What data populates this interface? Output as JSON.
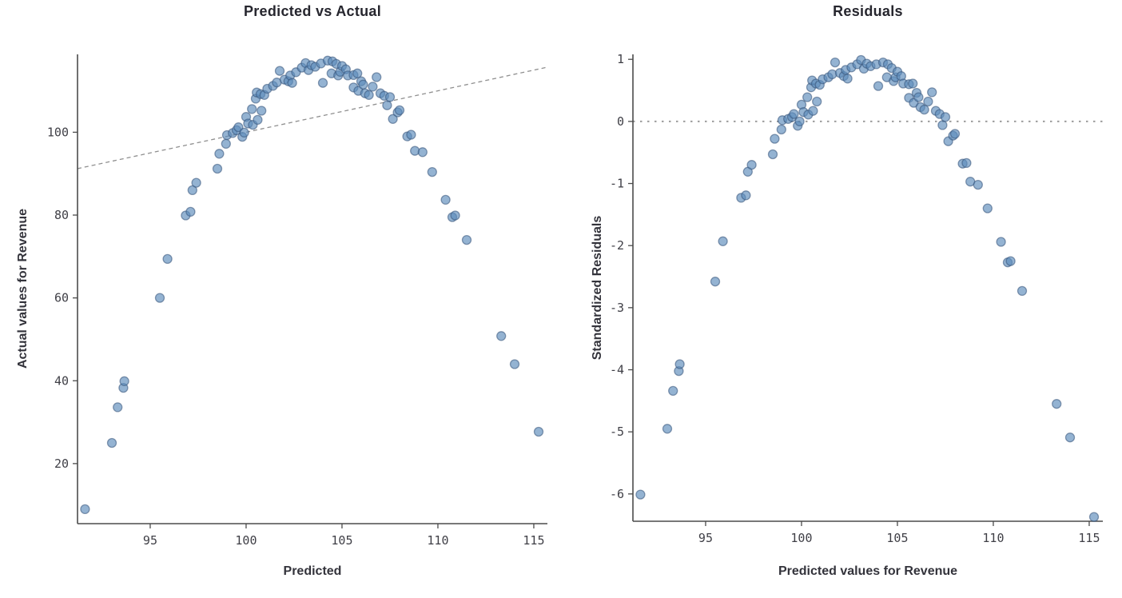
{
  "page": {
    "background": "#ffffff"
  },
  "style": {
    "point_fill": "rgba(93,140,187,0.66)",
    "point_stroke": "rgba(52,82,120,0.55)",
    "point_radius": 5.5,
    "point_stroke_width": 1.3,
    "axis_color": "#4b4b4b",
    "tick_label_color": "#3f3f46",
    "title_color": "#26262e",
    "label_color": "#33333b",
    "ref_line_color": "#8f8f8f",
    "zero_line_color": "#9c9c9c"
  },
  "chart_data": [
    {
      "id": "predicted_vs_actual",
      "type": "scatter",
      "title": "Predicted vs Actual",
      "xlabel": "Predicted",
      "ylabel": "Actual values for Revenue",
      "xlim": [
        91.21,
        115.71
      ],
      "ylim": [
        5.5,
        118.8
      ],
      "xticks": [
        95,
        100,
        105,
        110,
        115
      ],
      "yticks": [
        20,
        40,
        60,
        80,
        100
      ],
      "grid": false,
      "legend": false,
      "reference_line": {
        "type": "identity",
        "style": "dashed"
      },
      "points": [
        [
          91.6,
          9
        ],
        [
          93,
          25
        ],
        [
          93.3,
          33.6
        ],
        [
          93.6,
          38.3
        ],
        [
          93.65,
          39.9
        ],
        [
          95.5,
          60
        ],
        [
          95.9,
          69.4
        ],
        [
          96.85,
          79.9
        ],
        [
          97.1,
          80.8
        ],
        [
          97.2,
          86
        ],
        [
          97.4,
          87.8
        ],
        [
          98.5,
          91.2
        ],
        [
          98.6,
          94.8
        ],
        [
          98.95,
          97.2
        ],
        [
          99,
          99.3
        ],
        [
          99.3,
          99.8
        ],
        [
          99.5,
          100.5
        ],
        [
          99.6,
          101.2
        ],
        [
          99.8,
          98.9
        ],
        [
          99.9,
          99.9
        ],
        [
          100,
          103.7
        ],
        [
          100.1,
          102.1
        ],
        [
          100.3,
          105.6
        ],
        [
          100.35,
          101.8
        ],
        [
          100.5,
          108.1
        ],
        [
          100.55,
          109.6
        ],
        [
          100.6,
          103
        ],
        [
          100.75,
          109.2
        ],
        [
          100.8,
          105.2
        ],
        [
          100.95,
          109
        ],
        [
          101.1,
          110.5
        ],
        [
          101.4,
          111.2
        ],
        [
          101.6,
          112
        ],
        [
          101.75,
          114.8
        ],
        [
          102,
          112.7
        ],
        [
          102.2,
          112.3
        ],
        [
          102.3,
          113.7
        ],
        [
          102.4,
          111.9
        ],
        [
          102.6,
          114.5
        ],
        [
          102.9,
          115.6
        ],
        [
          103.1,
          116.7
        ],
        [
          103.25,
          115
        ],
        [
          103.4,
          116.2
        ],
        [
          103.6,
          115.8
        ],
        [
          103.9,
          116.6
        ],
        [
          104,
          111.9
        ],
        [
          104.25,
          117.3
        ],
        [
          104.45,
          114.2
        ],
        [
          104.5,
          117.1
        ],
        [
          104.7,
          116.5
        ],
        [
          104.8,
          113.7
        ],
        [
          104.9,
          114.6
        ],
        [
          105,
          116
        ],
        [
          105.2,
          115.2
        ],
        [
          105.3,
          113.7
        ],
        [
          105.6,
          113.8
        ],
        [
          105.6,
          110.8
        ],
        [
          105.8,
          114.2
        ],
        [
          105.85,
          110
        ],
        [
          106,
          112.3
        ],
        [
          106.1,
          111.5
        ],
        [
          106.2,
          109.4
        ],
        [
          106.4,
          109
        ],
        [
          106.6,
          111
        ],
        [
          106.8,
          113.3
        ],
        [
          107,
          109.4
        ],
        [
          107.2,
          108.8
        ],
        [
          107.35,
          106.5
        ],
        [
          107.5,
          108.5
        ],
        [
          107.65,
          103.2
        ],
        [
          107.9,
          104.8
        ],
        [
          108,
          105.3
        ],
        [
          108.4,
          99
        ],
        [
          108.6,
          99.4
        ],
        [
          108.8,
          95.5
        ],
        [
          109.2,
          95.2
        ],
        [
          109.7,
          90.4
        ],
        [
          110.4,
          83.7
        ],
        [
          110.75,
          79.5
        ],
        [
          110.9,
          79.9
        ],
        [
          111.5,
          74
        ],
        [
          113.3,
          50.8
        ],
        [
          114,
          44
        ],
        [
          115.25,
          27.7
        ]
      ]
    },
    {
      "id": "residuals",
      "type": "scatter",
      "title": "Residuals",
      "xlabel": "Predicted values for Revenue",
      "ylabel": "Standardized Residuals",
      "xlim": [
        91.21,
        115.71
      ],
      "ylim": [
        -6.44,
        1.08
      ],
      "xticks": [
        95,
        100,
        105,
        110,
        115
      ],
      "yticks": [
        1,
        0,
        -1,
        -2,
        -3,
        -4,
        -5,
        -6
      ],
      "grid": false,
      "legend": false,
      "reference_line": {
        "type": "horizontal",
        "y": 0,
        "style": "dashed"
      },
      "points": [
        [
          91.6,
          -6.01
        ],
        [
          93,
          -4.95
        ],
        [
          93.3,
          -4.34
        ],
        [
          93.6,
          -4.02
        ],
        [
          93.65,
          -3.91
        ],
        [
          95.5,
          -2.58
        ],
        [
          95.9,
          -1.93
        ],
        [
          96.85,
          -1.23
        ],
        [
          97.1,
          -1.19
        ],
        [
          97.2,
          -0.81
        ],
        [
          97.4,
          -0.7
        ],
        [
          98.5,
          -0.53
        ],
        [
          98.6,
          -0.28
        ],
        [
          98.95,
          -0.13
        ],
        [
          99,
          0.02
        ],
        [
          99.3,
          0.04
        ],
        [
          99.5,
          0.07
        ],
        [
          99.6,
          0.12
        ],
        [
          99.8,
          -0.07
        ],
        [
          99.9,
          0
        ],
        [
          100,
          0.27
        ],
        [
          100.1,
          0.15
        ],
        [
          100.3,
          0.39
        ],
        [
          100.35,
          0.11
        ],
        [
          100.5,
          0.55
        ],
        [
          100.55,
          0.66
        ],
        [
          100.6,
          0.17
        ],
        [
          100.75,
          0.61
        ],
        [
          100.8,
          0.32
        ],
        [
          100.95,
          0.59
        ],
        [
          101.1,
          0.68
        ],
        [
          101.4,
          0.71
        ],
        [
          101.6,
          0.76
        ],
        [
          101.75,
          0.95
        ],
        [
          102,
          0.78
        ],
        [
          102.2,
          0.73
        ],
        [
          102.3,
          0.83
        ],
        [
          102.4,
          0.69
        ],
        [
          102.6,
          0.87
        ],
        [
          102.9,
          0.92
        ],
        [
          103.1,
          0.99
        ],
        [
          103.25,
          0.85
        ],
        [
          103.4,
          0.93
        ],
        [
          103.6,
          0.89
        ],
        [
          103.9,
          0.92
        ],
        [
          104,
          0.57
        ],
        [
          104.25,
          0.95
        ],
        [
          104.45,
          0.71
        ],
        [
          104.5,
          0.92
        ],
        [
          104.7,
          0.86
        ],
        [
          104.8,
          0.65
        ],
        [
          104.9,
          0.71
        ],
        [
          105,
          0.8
        ],
        [
          105.2,
          0.73
        ],
        [
          105.3,
          0.61
        ],
        [
          105.6,
          0.6
        ],
        [
          105.6,
          0.38
        ],
        [
          105.8,
          0.61
        ],
        [
          105.85,
          0.3
        ],
        [
          106,
          0.46
        ],
        [
          106.1,
          0.39
        ],
        [
          106.2,
          0.23
        ],
        [
          106.4,
          0.19
        ],
        [
          106.6,
          0.32
        ],
        [
          106.8,
          0.47
        ],
        [
          107,
          0.17
        ],
        [
          107.2,
          0.12
        ],
        [
          107.35,
          -0.06
        ],
        [
          107.5,
          0.07
        ],
        [
          107.65,
          -0.32
        ],
        [
          107.9,
          -0.23
        ],
        [
          108,
          -0.2
        ],
        [
          108.4,
          -0.68
        ],
        [
          108.6,
          -0.67
        ],
        [
          108.8,
          -0.97
        ],
        [
          109.2,
          -1.02
        ],
        [
          109.7,
          -1.4
        ],
        [
          110.4,
          -1.94
        ],
        [
          110.75,
          -2.27
        ],
        [
          110.9,
          -2.25
        ],
        [
          111.5,
          -2.73
        ],
        [
          113.3,
          -4.55
        ],
        [
          114,
          -5.09
        ],
        [
          115.25,
          -6.37
        ]
      ]
    }
  ]
}
